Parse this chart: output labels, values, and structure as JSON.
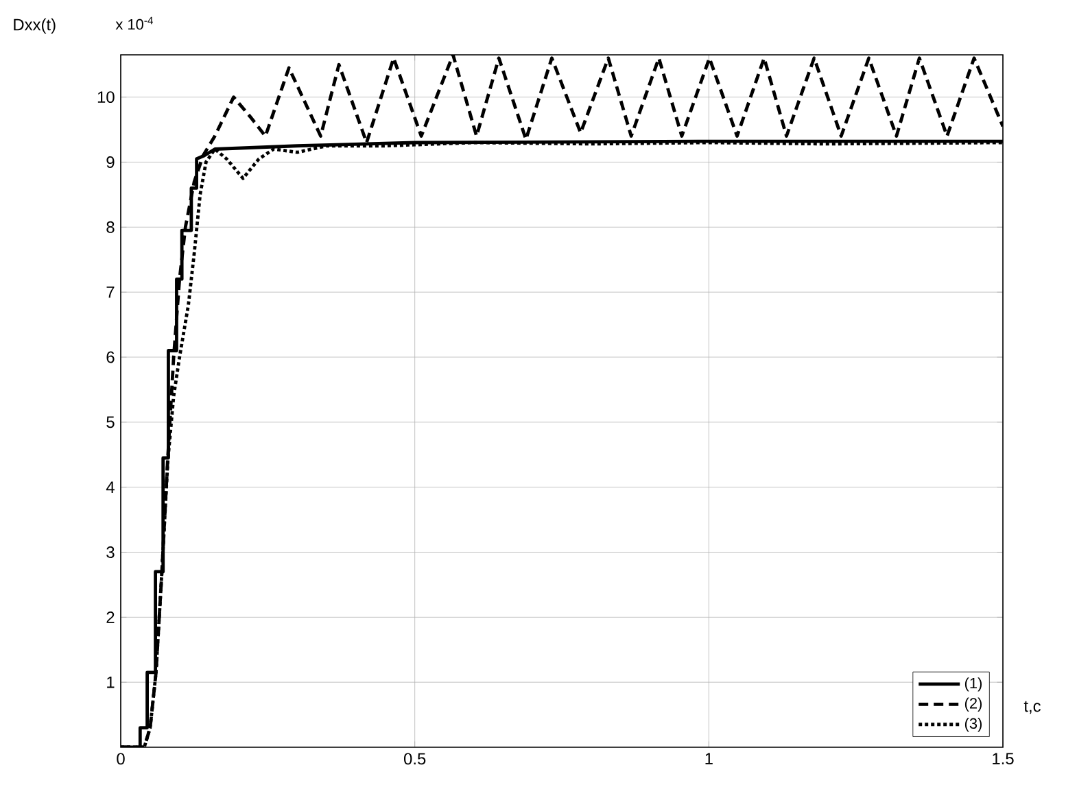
{
  "chart_data": {
    "type": "line",
    "ylabel": "Dxx(t)",
    "xlabel": "t,c",
    "annotations": [
      "x 10$^{-4}$"
    ],
    "xlim": [
      0,
      1.5
    ],
    "xticks": [
      0,
      0.5,
      1,
      1.5
    ],
    "ylim": [
      0,
      10.65
    ],
    "yticks": [
      1,
      2,
      3,
      4,
      5,
      6,
      7,
      8,
      9,
      10
    ],
    "grid": true,
    "legend": "bottom right",
    "marker": "none",
    "series": [
      {
        "name": "(1)",
        "color": "#000000",
        "line_style": "solid",
        "x": [
          0,
          0.033,
          0.033,
          0.045,
          0.045,
          0.059,
          0.059,
          0.072,
          0.072,
          0.081,
          0.081,
          0.095,
          0.095,
          0.104,
          0.104,
          0.12,
          0.12,
          0.129,
          0.129,
          0.142,
          0.16,
          0.3,
          0.5,
          1.0,
          1.5
        ],
        "values": [
          0,
          0,
          0.3,
          0.3,
          1.15,
          1.15,
          2.7,
          2.7,
          4.45,
          4.45,
          6.1,
          6.1,
          7.2,
          7.2,
          7.95,
          7.95,
          8.6,
          8.6,
          9.05,
          9.1,
          9.2,
          9.25,
          9.3,
          9.32,
          9.32
        ]
      },
      {
        "name": "(2)",
        "color": "#000000",
        "line_style": "dashed",
        "x": [
          0,
          0.04,
          0.05,
          0.06,
          0.07,
          0.08,
          0.09,
          0.1,
          0.11,
          0.125,
          0.14,
          0.16,
          0.192,
          0.22,
          0.246,
          0.286,
          0.34,
          0.371,
          0.418,
          0.464,
          0.511,
          0.565,
          0.605,
          0.643,
          0.689,
          0.733,
          0.782,
          0.829,
          0.868,
          0.915,
          0.954,
          1.001,
          1.048,
          1.094,
          1.132,
          1.179,
          1.225,
          1.272,
          1.319,
          1.358,
          1.405,
          1.451,
          1.5
        ],
        "values": [
          0,
          0,
          0.3,
          1.15,
          2.7,
          4.45,
          6.0,
          7.2,
          8.0,
          8.7,
          9.1,
          9.4,
          10.0,
          9.7,
          9.4,
          10.45,
          9.4,
          10.5,
          9.3,
          10.6,
          9.4,
          10.65,
          9.4,
          10.6,
          9.35,
          10.6,
          9.45,
          10.6,
          9.4,
          10.6,
          9.4,
          10.6,
          9.4,
          10.6,
          9.4,
          10.6,
          9.4,
          10.6,
          9.4,
          10.6,
          9.4,
          10.6,
          9.55
        ]
      },
      {
        "name": "(3)",
        "color": "#000000",
        "line_style": "dotted",
        "x": [
          0,
          0.04,
          0.05,
          0.06,
          0.07,
          0.08,
          0.09,
          0.1,
          0.115,
          0.125,
          0.135,
          0.145,
          0.16,
          0.18,
          0.208,
          0.235,
          0.26,
          0.3,
          0.35,
          0.45,
          0.6,
          0.8,
          1.0,
          1.2,
          1.5
        ],
        "values": [
          0,
          0,
          0.3,
          1.15,
          2.7,
          4.4,
          5.4,
          6.0,
          6.8,
          7.6,
          8.5,
          9.0,
          9.2,
          9.05,
          8.75,
          9.05,
          9.2,
          9.15,
          9.25,
          9.25,
          9.3,
          9.28,
          9.3,
          9.28,
          9.3
        ]
      }
    ]
  }
}
